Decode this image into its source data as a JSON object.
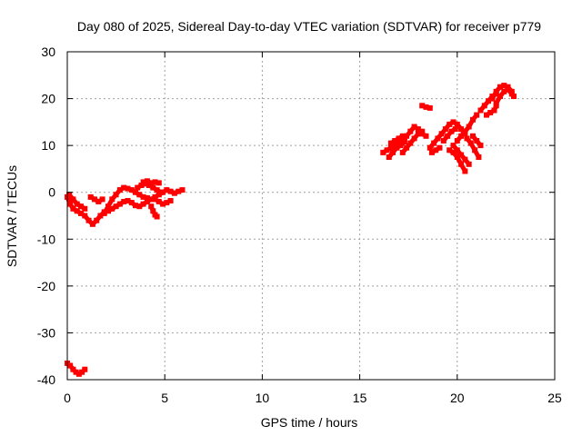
{
  "chart_data": {
    "type": "scatter",
    "title": "Day 080 of 2025, Sidereal Day-to-day VTEC variation (SDTVAR) for receiver p779",
    "xlabel": "GPS time / hours",
    "ylabel": "SDTVAR / TECUs",
    "xlim": [
      0,
      25
    ],
    "ylim": [
      -40,
      30
    ],
    "xticks": [
      "0",
      "5",
      "10",
      "15",
      "20",
      "25"
    ],
    "yticks": [
      "-40",
      "-30",
      "-20",
      "-10",
      "0",
      "10",
      "20",
      "30"
    ],
    "grid": true,
    "marker_color": "#ff0000",
    "series": [
      {
        "name": "",
        "segments": [
          [
            [
              0.0,
              -36.5
            ],
            [
              0.15,
              -37.0
            ],
            [
              0.3,
              -37.8
            ],
            [
              0.45,
              -38.4
            ],
            [
              0.6,
              -38.8
            ],
            [
              0.75,
              -38.4
            ],
            [
              0.9,
              -37.8
            ]
          ],
          [
            [
              0.0,
              -1.0
            ],
            [
              0.15,
              -2.5
            ],
            [
              0.3,
              -3.5
            ],
            [
              0.5,
              -4.0
            ],
            [
              0.7,
              -4.5
            ],
            [
              0.9,
              -5.0
            ],
            [
              1.1,
              -6.0
            ],
            [
              1.3,
              -6.8
            ],
            [
              1.5,
              -6.0
            ],
            [
              1.7,
              -5.0
            ],
            [
              1.9,
              -4.2
            ],
            [
              2.1,
              -4.0
            ],
            [
              2.3,
              -3.5
            ],
            [
              2.5,
              -3.0
            ],
            [
              2.7,
              -2.5
            ],
            [
              2.9,
              -2.0
            ],
            [
              3.1,
              -1.8
            ],
            [
              3.3,
              -2.2
            ],
            [
              3.5,
              -2.8
            ],
            [
              3.7,
              -3.0
            ],
            [
              3.9,
              -2.5
            ],
            [
              4.1,
              -2.0
            ],
            [
              4.3,
              -1.5
            ],
            [
              4.5,
              -1.0
            ],
            [
              4.7,
              -0.5
            ],
            [
              4.9,
              0.0
            ],
            [
              5.1,
              0.5
            ],
            [
              5.3,
              0.2
            ],
            [
              5.5,
              -0.2
            ],
            [
              5.7,
              0.2
            ],
            [
              5.9,
              0.5
            ]
          ],
          [
            [
              0.1,
              -0.5
            ],
            [
              0.3,
              -1.5
            ],
            [
              0.5,
              -2.5
            ],
            [
              0.7,
              -3.0
            ],
            [
              0.9,
              -3.5
            ]
          ],
          [
            [
              1.2,
              -1.0
            ],
            [
              1.4,
              -1.5
            ],
            [
              1.6,
              -2.0
            ],
            [
              1.8,
              -1.5
            ]
          ],
          [
            [
              1.9,
              -4.5
            ],
            [
              2.1,
              -3.0
            ],
            [
              2.3,
              -1.5
            ],
            [
              2.5,
              -0.5
            ],
            [
              2.7,
              0.5
            ],
            [
              2.9,
              1.0
            ],
            [
              3.1,
              0.8
            ],
            [
              3.3,
              0.5
            ],
            [
              3.5,
              0.0
            ],
            [
              3.7,
              -0.5
            ],
            [
              3.9,
              -1.0
            ],
            [
              4.1,
              -1.2
            ]
          ],
          [
            [
              3.6,
              1.0
            ],
            [
              3.8,
              1.5
            ],
            [
              4.0,
              1.8
            ],
            [
              4.2,
              1.5
            ],
            [
              4.4,
              1.0
            ],
            [
              4.6,
              0.5
            ],
            [
              4.8,
              0.0
            ]
          ],
          [
            [
              3.9,
              2.2
            ],
            [
              4.1,
              2.4
            ],
            [
              4.3,
              2.0
            ],
            [
              4.5,
              2.2
            ],
            [
              4.7,
              2.0
            ]
          ],
          [
            [
              4.3,
              -3.0
            ],
            [
              4.4,
              -4.0
            ],
            [
              4.5,
              -4.8
            ],
            [
              4.6,
              -5.2
            ]
          ],
          [
            [
              4.5,
              -1.5
            ],
            [
              4.7,
              -2.0
            ],
            [
              4.9,
              -2.5
            ],
            [
              5.1,
              -2.2
            ],
            [
              5.3,
              -1.8
            ]
          ]
        ]
      },
      {
        "name": "",
        "segments": [
          [
            [
              16.2,
              8.5
            ],
            [
              16.4,
              9.0
            ],
            [
              16.6,
              9.5
            ],
            [
              16.8,
              10.0
            ],
            [
              17.0,
              10.5
            ],
            [
              17.2,
              11.0
            ],
            [
              17.4,
              12.0
            ],
            [
              17.6,
              13.0
            ],
            [
              17.8,
              14.0
            ],
            [
              18.0,
              13.5
            ],
            [
              18.2,
              12.5
            ],
            [
              18.4,
              12.0
            ]
          ],
          [
            [
              16.5,
              7.5
            ],
            [
              16.7,
              8.5
            ],
            [
              16.9,
              9.5
            ],
            [
              17.1,
              10.0
            ],
            [
              17.3,
              10.8
            ]
          ],
          [
            [
              16.6,
              10.5
            ],
            [
              16.8,
              11.0
            ],
            [
              17.0,
              11.5
            ],
            [
              17.2,
              12.0
            ]
          ],
          [
            [
              17.2,
              8.5
            ],
            [
              17.4,
              9.5
            ],
            [
              17.6,
              10.5
            ],
            [
              17.8,
              11.5
            ],
            [
              18.0,
              12.5
            ],
            [
              18.2,
              13.0
            ]
          ],
          [
            [
              18.2,
              18.5
            ],
            [
              18.4,
              18.2
            ],
            [
              18.6,
              18.0
            ]
          ],
          [
            [
              18.6,
              9.5
            ],
            [
              18.8,
              10.5
            ],
            [
              19.0,
              11.5
            ],
            [
              19.2,
              12.5
            ],
            [
              19.4,
              13.5
            ],
            [
              19.6,
              14.5
            ],
            [
              19.8,
              15.0
            ],
            [
              20.0,
              14.5
            ],
            [
              20.2,
              13.5
            ],
            [
              20.4,
              12.5
            ]
          ],
          [
            [
              18.7,
              8.5
            ],
            [
              18.9,
              9.0
            ],
            [
              19.1,
              9.5
            ]
          ],
          [
            [
              19.3,
              11.0
            ],
            [
              19.5,
              12.0
            ],
            [
              19.7,
              13.0
            ],
            [
              19.9,
              13.5
            ]
          ],
          [
            [
              19.6,
              9.0
            ],
            [
              19.8,
              8.5
            ],
            [
              20.0,
              7.5
            ],
            [
              20.2,
              6.0
            ],
            [
              20.4,
              4.5
            ]
          ],
          [
            [
              19.8,
              10.0
            ],
            [
              20.0,
              9.0
            ],
            [
              20.2,
              8.0
            ],
            [
              20.4,
              7.0
            ],
            [
              20.6,
              6.0
            ]
          ],
          [
            [
              20.0,
              11.0
            ],
            [
              20.2,
              12.0
            ],
            [
              20.4,
              13.0
            ],
            [
              20.6,
              14.0
            ],
            [
              20.8,
              15.5
            ],
            [
              21.0,
              16.5
            ]
          ],
          [
            [
              20.5,
              11.5
            ],
            [
              20.7,
              10.5
            ],
            [
              20.9,
              9.0
            ],
            [
              21.1,
              7.5
            ]
          ],
          [
            [
              20.8,
              12.0
            ],
            [
              21.0,
              11.0
            ],
            [
              21.2,
              10.0
            ]
          ],
          [
            [
              21.2,
              17.5
            ],
            [
              21.4,
              18.5
            ],
            [
              21.6,
              19.5
            ],
            [
              21.8,
              20.5
            ],
            [
              22.0,
              21.0
            ]
          ],
          [
            [
              21.5,
              16.5
            ],
            [
              21.7,
              17.0
            ],
            [
              21.9,
              17.5
            ],
            [
              22.0,
              18.5
            ]
          ],
          [
            [
              21.8,
              20.0
            ],
            [
              22.0,
              21.5
            ],
            [
              22.2,
              22.5
            ],
            [
              22.4,
              22.8
            ],
            [
              22.6,
              22.5
            ],
            [
              22.8,
              21.5
            ]
          ],
          [
            [
              22.0,
              19.0
            ],
            [
              22.2,
              20.5
            ],
            [
              22.4,
              21.5
            ],
            [
              22.6,
              22.0
            ],
            [
              22.8,
              21.0
            ],
            [
              22.9,
              20.5
            ]
          ]
        ]
      }
    ]
  }
}
